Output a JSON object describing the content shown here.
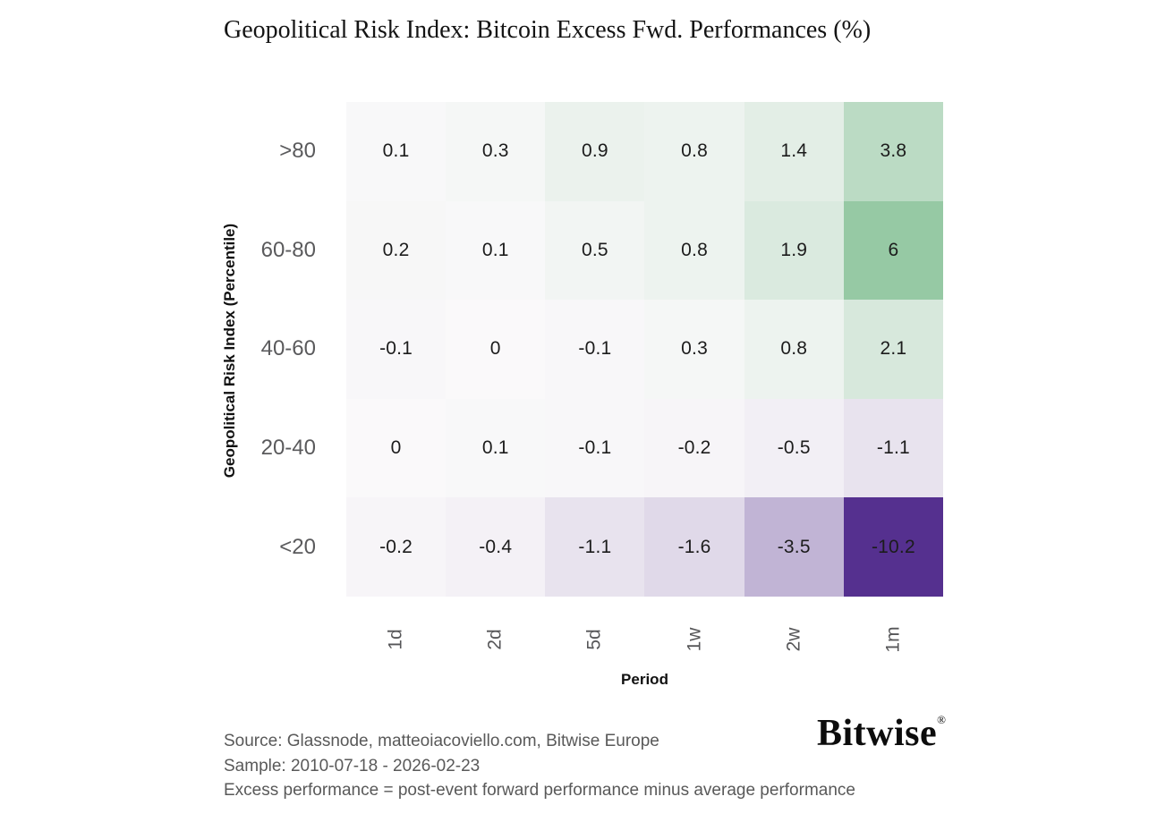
{
  "title": "Geopolitical Risk Index: Bitcoin Excess Fwd. Performances (%)",
  "chart_data": {
    "type": "heatmap",
    "title": "Geopolitical Risk Index: Bitcoin Excess Fwd. Performances (%)",
    "xlabel": "Period",
    "ylabel": "Geopolitical Risk Index (Percentile)",
    "columns": [
      "1d",
      "2d",
      "5d",
      "1w",
      "2w",
      "1m"
    ],
    "rows": [
      ">80",
      "60-80",
      "40-60",
      "20-40",
      "<20"
    ],
    "values": [
      [
        0.1,
        0.3,
        0.9,
        0.8,
        1.4,
        3.8
      ],
      [
        0.2,
        0.1,
        0.5,
        0.8,
        1.9,
        6
      ],
      [
        -0.1,
        0,
        -0.1,
        0.3,
        0.8,
        2.1
      ],
      [
        0,
        0.1,
        -0.1,
        -0.2,
        -0.5,
        -1.1
      ],
      [
        -0.2,
        -0.4,
        -1.1,
        -1.6,
        -3.5,
        -10.2
      ]
    ],
    "cell_labels": [
      [
        "0.1",
        "0.3",
        "0.9",
        "0.8",
        "1.4",
        "3.8"
      ],
      [
        "0.2",
        "0.1",
        "0.5",
        "0.8",
        "1.9",
        "6"
      ],
      [
        "-0.1",
        "0",
        "-0.1",
        "0.3",
        "0.8",
        "2.1"
      ],
      [
        "0",
        "0.1",
        "-0.1",
        "-0.2",
        "-0.5",
        "-1.1"
      ],
      [
        "-0.2",
        "-0.4",
        "-1.1",
        "-1.6",
        "-3.5",
        "-10.2"
      ]
    ],
    "cell_colors": [
      [
        "#f8f8f9",
        "#f5f7f6",
        "#ebf2ed",
        "#edf3ef",
        "#e3eee6",
        "#bbdbc4"
      ],
      [
        "#f7f7f7",
        "#f8f8f9",
        "#f2f5f3",
        "#edf3ef",
        "#daeadf",
        "#96c9a4"
      ],
      [
        "#f8f7f9",
        "#faf9fa",
        "#f8f7f9",
        "#f5f7f6",
        "#edf3ef",
        "#d7e8dc"
      ],
      [
        "#faf9fa",
        "#f8f8f9",
        "#f8f7f9",
        "#f7f5f8",
        "#f2eff5",
        "#e8e3ee"
      ],
      [
        "#f7f5f8",
        "#f4f1f6",
        "#e8e3ee",
        "#e0d9e9",
        "#c1b4d5",
        "#55308f"
      ]
    ],
    "colormap": {
      "type": "diverging",
      "negative_end": "#55308f",
      "center": "#faf9fa",
      "positive_end": "#50a868",
      "vmin": -10.2,
      "vmax": 10.2
    },
    "grid": false,
    "legend": "none"
  },
  "footer": {
    "source_line": "Source: Glassnode, matteoiacoviello.com, Bitwise Europe",
    "sample_line": "Sample: 2010-07-18 - 2026-02-23",
    "note_line": "Excess performance = post-event forward performance minus average performance"
  },
  "branding": {
    "logo_text": "Bitwise",
    "registered_mark": "®"
  },
  "colors": {
    "background": "#ffffff",
    "title_text": "#141414",
    "cell_text": "#1c1c1c",
    "axis_tick_gray": "#5a5a5c",
    "footer_gray": "#595959",
    "logo_black": "#0c0c0c"
  }
}
